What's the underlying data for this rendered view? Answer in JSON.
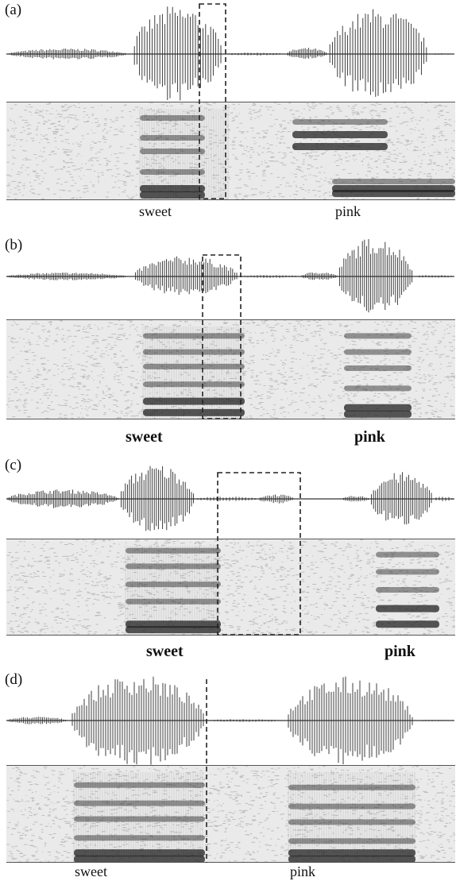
{
  "panels": [
    {
      "id": "a",
      "label": "(a)",
      "word1": "sweet",
      "word2": "pink"
    },
    {
      "id": "b",
      "label": "(b)",
      "word1": "sweet",
      "word2": "pink"
    },
    {
      "id": "c",
      "label": "(c)",
      "word1": "sweet",
      "word2": "pink"
    },
    {
      "id": "d",
      "label": "(d)",
      "word1": "sweet",
      "word2": "pink"
    }
  ]
}
